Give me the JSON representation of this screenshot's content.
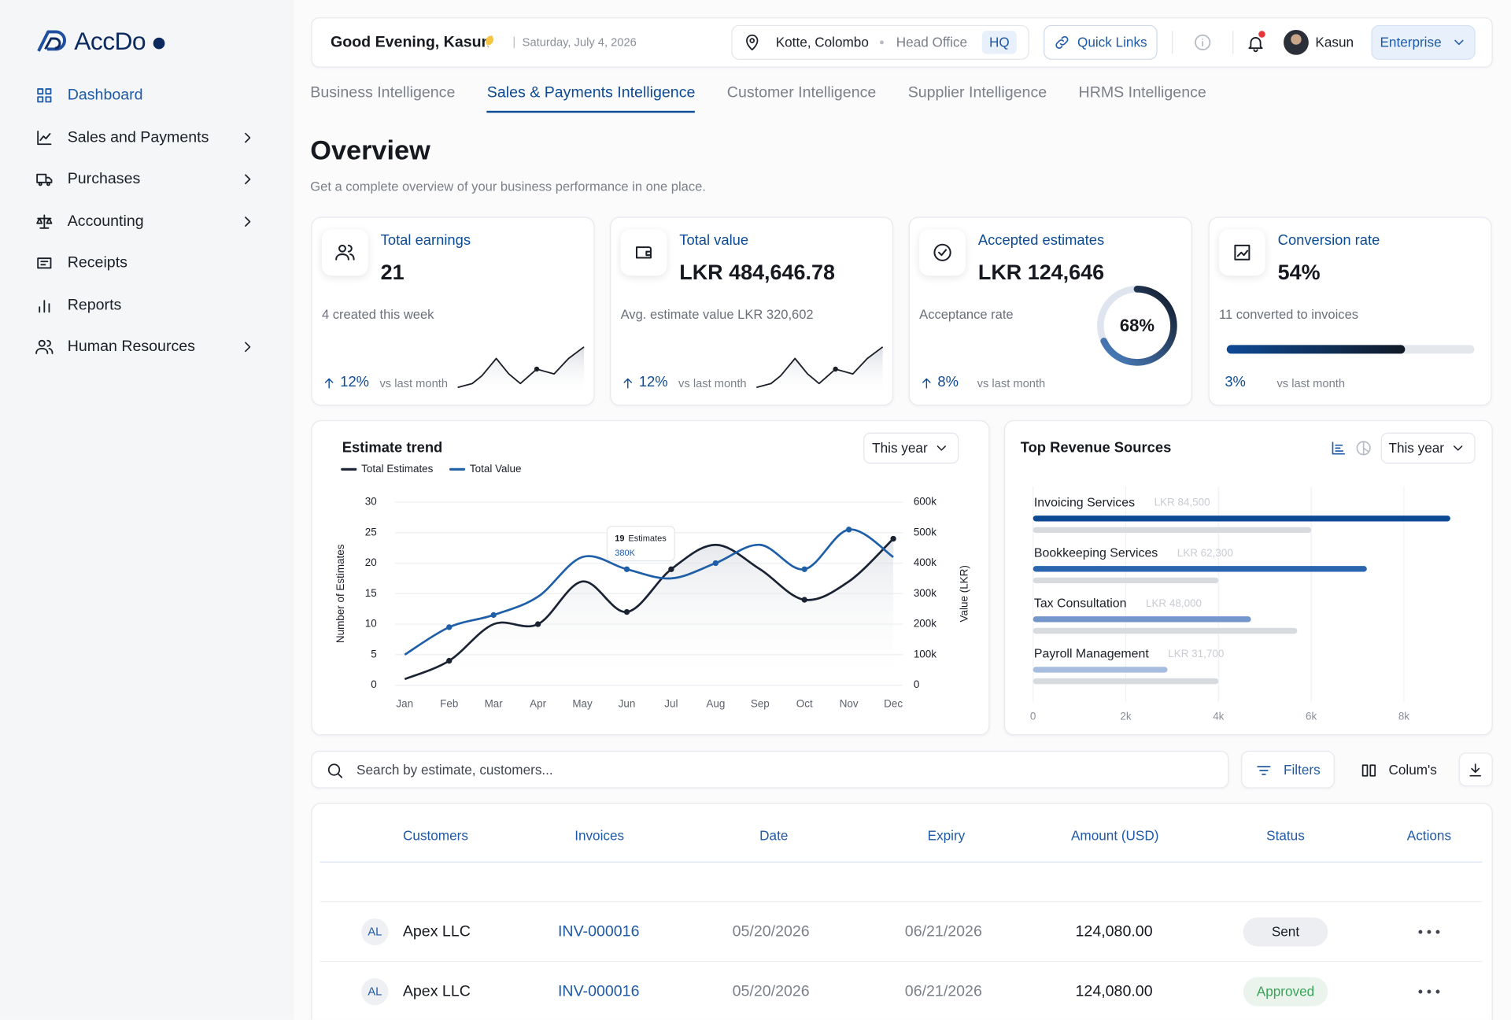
{
  "brand": {
    "name": "AccDo"
  },
  "sidebar": {
    "items": [
      {
        "label": "Dashboard",
        "active": true
      },
      {
        "label": "Sales and Payments",
        "submenu": true
      },
      {
        "label": "Purchases",
        "submenu": true
      },
      {
        "label": "Accounting",
        "submenu": true
      },
      {
        "label": "Receipts"
      },
      {
        "label": "Reports"
      },
      {
        "label": "Human Resources",
        "submenu": true
      }
    ]
  },
  "header": {
    "greeting": "Good Evening, Kasun",
    "date": "Saturday, July 4, 2026",
    "location": "Kotte, Colombo",
    "office": "Head Office",
    "office_code": "HQ",
    "quick_links": "Quick Links",
    "user": "Kasun",
    "plan": "Enterprise"
  },
  "tabs": {
    "items": [
      "Business Intelligence",
      "Sales & Payments Intelligence",
      "Customer Intelligence",
      "Supplier Intelligence",
      "HRMS Intelligence"
    ],
    "active": 1
  },
  "overview": {
    "title": "Overview",
    "subtitle": "Get a complete overview of your business performance in one place."
  },
  "kpis": [
    {
      "title": "Total earnings",
      "value": "21",
      "note": "4 created this week",
      "change": "12%",
      "change_note": "vs last month",
      "trend": "up",
      "sparkline": true
    },
    {
      "title": "Total value",
      "value": "LKR 484,646.78",
      "note": "Avg. estimate value LKR 320,602",
      "change": "12%",
      "change_note": "vs last month",
      "trend": "up",
      "sparkline": true
    },
    {
      "title": "Accepted estimates",
      "value": "LKR 124,646",
      "note": "Acceptance rate",
      "change": "8%",
      "change_note": "vs last month",
      "trend": "up",
      "gauge": {
        "value": 68,
        "label": "68%"
      }
    },
    {
      "title": "Conversion rate",
      "value": "54%",
      "note": "11 converted to invoices",
      "change": "3%",
      "change_note": "vs last month",
      "progress": 72
    }
  ],
  "estimate_trend": {
    "type": "line",
    "title": "Estimate trend",
    "filter": "This year",
    "categories": [
      "Jan",
      "Feb",
      "Mar",
      "Apr",
      "May",
      "Jun",
      "Jul",
      "Aug",
      "Sep",
      "Oct",
      "Nov",
      "Dec"
    ],
    "series": [
      {
        "name": "Total Estimates",
        "color": "#1a2333",
        "values": [
          1,
          4,
          10,
          10,
          17,
          12,
          19,
          23,
          19,
          14,
          17,
          24
        ]
      },
      {
        "name": "Total Value",
        "color": "#1f5fa8",
        "axis": "y2",
        "values": [
          100000,
          190000,
          230000,
          290000,
          420000,
          380000,
          350000,
          400000,
          460000,
          380000,
          510000,
          420000
        ]
      }
    ],
    "ylim": [
      0,
      30
    ],
    "yticks": [
      0,
      5,
      10,
      15,
      20,
      25,
      30
    ],
    "y2lim": [
      0,
      600000
    ],
    "y2ticks": [
      0,
      {
        "value": 100000,
        "label": "100k"
      },
      {
        "value": 200000,
        "label": "200k"
      },
      {
        "value": 300000,
        "label": "300k"
      },
      {
        "value": 400000,
        "label": "400k"
      },
      {
        "value": 500000,
        "label": "500k"
      },
      {
        "value": 600000,
        "label": "600k"
      }
    ],
    "y_label": "Number of Estimates",
    "y2_label": "Value (LKR)",
    "grid": true,
    "tooltip": {
      "count": "19",
      "unit": "Estimates",
      "value": "380K"
    }
  },
  "top_revenue": {
    "type": "bar",
    "orientation": "horizontal",
    "title": "Top Revenue Sources",
    "filter": "This year",
    "categories": [
      "Invoicing Services",
      "Bookkeeping Services",
      "Tax Consultation",
      "Payroll Management"
    ],
    "amounts": [
      "LKR 84,500",
      "LKR 62,300",
      "LKR 48,000",
      "LKR 31,700"
    ],
    "series": [
      {
        "values": [
          9000,
          7200,
          4700,
          2900
        ],
        "colors": [
          "#0d4a94",
          "#2a66b0",
          "#7497cb",
          "#a7bddf"
        ]
      },
      {
        "values": [
          6000,
          4000,
          5700,
          4000
        ],
        "color": "#d7dadf"
      }
    ],
    "xlim": [
      0,
      9000
    ],
    "xticks": [
      0,
      {
        "value": 2000,
        "label": "2k"
      },
      {
        "value": 4000,
        "label": "4k"
      },
      {
        "value": 6000,
        "label": "6k"
      },
      {
        "value": 8000,
        "label": "8k"
      }
    ],
    "grid": true
  },
  "toolbar": {
    "search_placeholder": "Search by estimate, customers...",
    "filters": "Filters",
    "columns": "Colum's"
  },
  "table": {
    "columns": [
      "Customers",
      "Invoices",
      "Date",
      "Expiry",
      "Amount (USD)",
      "Status",
      "Actions"
    ],
    "rows": [
      {
        "initials": "AL",
        "customer": "Apex LLC",
        "invoice": "INV-000016",
        "date": "05/20/2026",
        "expiry": "06/21/2026",
        "amount": "124,080.00",
        "status": "Sent"
      },
      {
        "initials": "AL",
        "customer": "Apex LLC",
        "invoice": "INV-000016",
        "date": "05/20/2026",
        "expiry": "06/21/2026",
        "amount": "124,080.00",
        "status": "Approved"
      }
    ]
  }
}
